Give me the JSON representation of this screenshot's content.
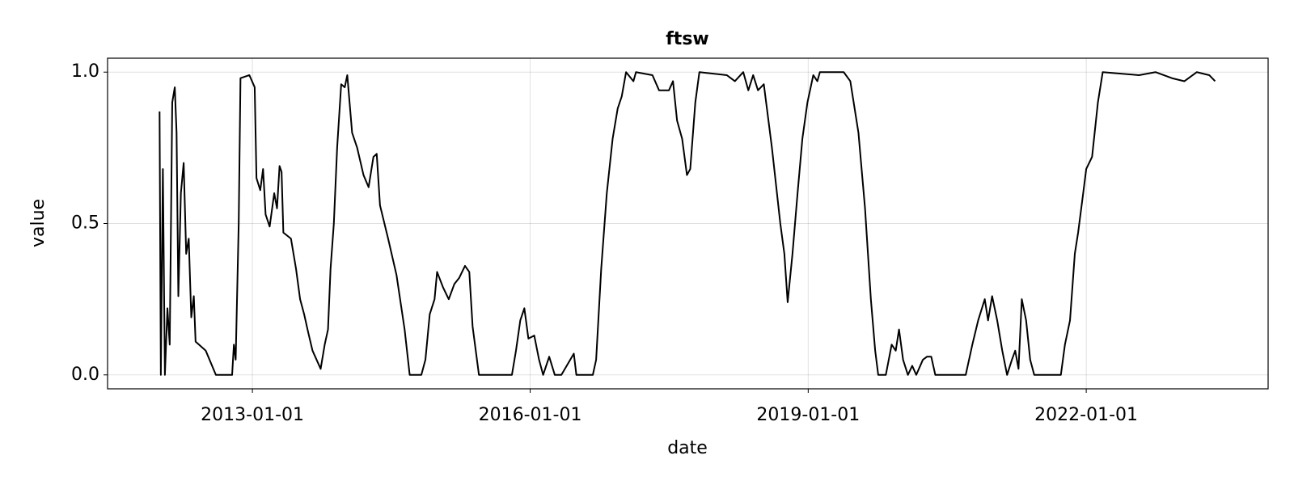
{
  "chart_data": {
    "type": "line",
    "title": "ftsw",
    "x_label": "date",
    "y_label": "value",
    "color": "#000000",
    "grid": true,
    "xlim": [
      "2011-06-10",
      "2023-12-19"
    ],
    "xticks": [
      "2013-01-01",
      "2016-01-01",
      "2019-01-01",
      "2022-01-01"
    ],
    "ylim": [
      -0.046,
      1.046
    ],
    "yticks": [
      {
        "value": 0,
        "label": "0.0"
      },
      0.5,
      {
        "value": 1,
        "label": "1.0"
      }
    ],
    "x": [
      "2012-01-01",
      "2012-01-06",
      "2012-01-14",
      "2012-01-22",
      "2012-02-01",
      "2012-02-10",
      "2012-02-20",
      "2012-03-01",
      "2012-03-08",
      "2012-03-15",
      "2012-03-25",
      "2012-04-05",
      "2012-04-15",
      "2012-04-25",
      "2012-05-05",
      "2012-05-15",
      "2012-05-22",
      "2012-07-01",
      "2012-08-10",
      "2012-10-13",
      "2012-10-20",
      "2012-10-27",
      "2012-11-08",
      "2012-11-15",
      "2012-12-20",
      "2013-01-10",
      "2013-01-17",
      "2013-02-01",
      "2013-02-12",
      "2013-02-22",
      "2013-03-10",
      "2013-03-28",
      "2013-04-08",
      "2013-04-18",
      "2013-04-26",
      "2013-05-03",
      "2013-06-02",
      "2013-06-22",
      "2013-07-08",
      "2013-07-24",
      "2013-08-09",
      "2013-08-26",
      "2013-09-11",
      "2013-09-27",
      "2013-10-13",
      "2013-10-26",
      "2013-11-05",
      "2013-11-18",
      "2013-12-01",
      "2013-12-17",
      "2013-12-31",
      "2014-01-10",
      "2014-01-29",
      "2014-02-18",
      "2014-03-15",
      "2014-04-04",
      "2014-04-23",
      "2014-05-06",
      "2014-05-19",
      "2014-06-20",
      "2014-07-23",
      "2014-08-24",
      "2014-09-13",
      "2014-10-29",
      "2014-11-14",
      "2014-12-01",
      "2014-12-20",
      "2014-12-30",
      "2015-01-22",
      "2015-02-14",
      "2015-03-08",
      "2015-03-27",
      "2015-04-19",
      "2015-05-06",
      "2015-05-19",
      "2015-06-13",
      "2015-10-21",
      "2015-11-06",
      "2015-11-23",
      "2015-12-09",
      "2015-12-25",
      "2016-01-17",
      "2016-02-05",
      "2016-02-21",
      "2016-03-16",
      "2016-04-07",
      "2016-05-03",
      "2016-06-21",
      "2016-07-01",
      "2016-09-04",
      "2016-09-17",
      "2016-10-07",
      "2016-10-29",
      "2016-11-21",
      "2016-12-11",
      "2016-12-27",
      "2017-01-13",
      "2017-02-11",
      "2017-02-21",
      "2017-04-27",
      "2017-05-23",
      "2017-07-01",
      "2017-07-17",
      "2017-08-02",
      "2017-08-22",
      "2017-09-10",
      "2017-09-23",
      "2017-10-13",
      "2017-10-29",
      "2018-02-14",
      "2018-03-18",
      "2018-04-20",
      "2018-05-10",
      "2018-05-29",
      "2018-06-17",
      "2018-07-10",
      "2018-08-11",
      "2018-09-13",
      "2018-09-29",
      "2018-10-12",
      "2018-10-31",
      "2018-11-20",
      "2018-12-09",
      "2018-12-29",
      "2019-01-21",
      "2019-02-06",
      "2019-02-16",
      "2019-05-21",
      "2019-06-16",
      "2019-07-18",
      "2019-08-13",
      "2019-09-05",
      "2019-09-22",
      "2019-10-04",
      "2019-11-03",
      "2019-11-26",
      "2019-12-12",
      "2019-12-25",
      "2020-01-10",
      "2020-01-29",
      "2020-02-15",
      "2020-03-02",
      "2020-03-28",
      "2020-04-13",
      "2020-04-30",
      "2020-05-16",
      "2020-09-13",
      "2020-10-09",
      "2020-11-01",
      "2020-11-27",
      "2020-12-10",
      "2020-12-26",
      "2021-01-15",
      "2021-02-04",
      "2021-02-23",
      "2021-03-14",
      "2021-03-27",
      "2021-04-09",
      "2021-04-22",
      "2021-05-09",
      "2021-05-25",
      "2021-06-10",
      "2021-09-23",
      "2021-10-09",
      "2021-10-29",
      "2021-11-17",
      "2021-11-30",
      "2021-12-20",
      "2022-01-01",
      "2022-01-24",
      "2022-02-16",
      "2022-03-07",
      "2022-07-28",
      "2022-10-01",
      "2022-12-05",
      "2023-01-23",
      "2023-03-13",
      "2023-05-01",
      "2023-05-24"
    ],
    "values": [
      0.87,
      0.0,
      0.68,
      0.0,
      0.22,
      0.1,
      0.9,
      0.95,
      0.8,
      0.26,
      0.6,
      0.7,
      0.4,
      0.45,
      0.19,
      0.26,
      0.11,
      0.08,
      0.0,
      0.0,
      0.1,
      0.05,
      0.5,
      0.98,
      0.99,
      0.95,
      0.65,
      0.61,
      0.68,
      0.53,
      0.49,
      0.6,
      0.55,
      0.69,
      0.67,
      0.47,
      0.45,
      0.35,
      0.25,
      0.2,
      0.14,
      0.08,
      0.05,
      0.02,
      0.1,
      0.15,
      0.35,
      0.5,
      0.75,
      0.96,
      0.95,
      0.99,
      0.8,
      0.75,
      0.66,
      0.62,
      0.72,
      0.73,
      0.56,
      0.45,
      0.33,
      0.15,
      0.0,
      0.0,
      0.05,
      0.2,
      0.25,
      0.34,
      0.29,
      0.25,
      0.3,
      0.32,
      0.36,
      0.34,
      0.16,
      0.0,
      0.0,
      0.08,
      0.18,
      0.22,
      0.12,
      0.13,
      0.05,
      0.0,
      0.06,
      0.0,
      0.0,
      0.07,
      0.0,
      0.0,
      0.05,
      0.35,
      0.6,
      0.78,
      0.88,
      0.92,
      1.0,
      0.97,
      1.0,
      0.99,
      0.94,
      0.94,
      0.97,
      0.84,
      0.78,
      0.66,
      0.68,
      0.9,
      1.0,
      0.99,
      0.97,
      1.0,
      0.94,
      0.99,
      0.94,
      0.96,
      0.75,
      0.5,
      0.4,
      0.24,
      0.4,
      0.6,
      0.78,
      0.9,
      0.99,
      0.97,
      1.0,
      1.0,
      0.97,
      0.8,
      0.55,
      0.25,
      0.08,
      0.0,
      0.0,
      0.1,
      0.08,
      0.15,
      0.05,
      0.0,
      0.03,
      0.0,
      0.05,
      0.06,
      0.06,
      0.0,
      0.0,
      0.1,
      0.18,
      0.25,
      0.18,
      0.26,
      0.18,
      0.08,
      0.0,
      0.05,
      0.08,
      0.02,
      0.25,
      0.18,
      0.05,
      0.0,
      0.0,
      0.1,
      0.18,
      0.4,
      0.47,
      0.6,
      0.68,
      0.72,
      0.9,
      1.0,
      0.99,
      1.0,
      0.98,
      0.97,
      1.0,
      0.99,
      0.97
    ]
  }
}
